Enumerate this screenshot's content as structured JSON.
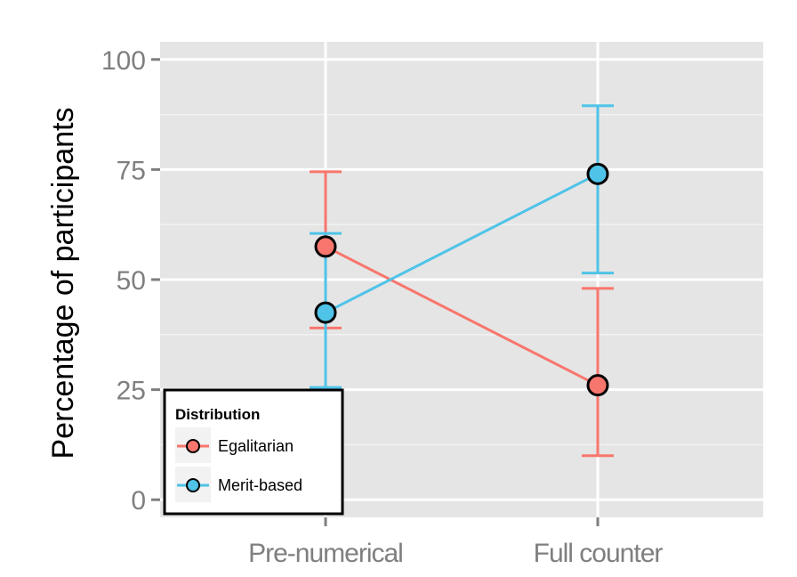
{
  "chart_data": {
    "type": "line",
    "title": "",
    "xlabel": "",
    "ylabel": "Percentage of participants",
    "categories": [
      "Pre-numerical",
      "Full counter"
    ],
    "ylim": [
      -4,
      104
    ],
    "yticks": [
      0,
      25,
      50,
      75,
      100
    ],
    "grid": true,
    "legend": {
      "title": "Distribution",
      "placement": "bottom-left"
    },
    "series": [
      {
        "name": "Egalitarian",
        "color": "#f8766d",
        "values": [
          57.5,
          26
        ],
        "error_low": [
          39,
          10
        ],
        "error_high": [
          74.5,
          48
        ]
      },
      {
        "name": "Merit-based",
        "color": "#4fc3e8",
        "values": [
          42.5,
          74
        ],
        "error_low": [
          25.5,
          51.5
        ],
        "error_high": [
          60.5,
          89.5
        ]
      }
    ]
  }
}
